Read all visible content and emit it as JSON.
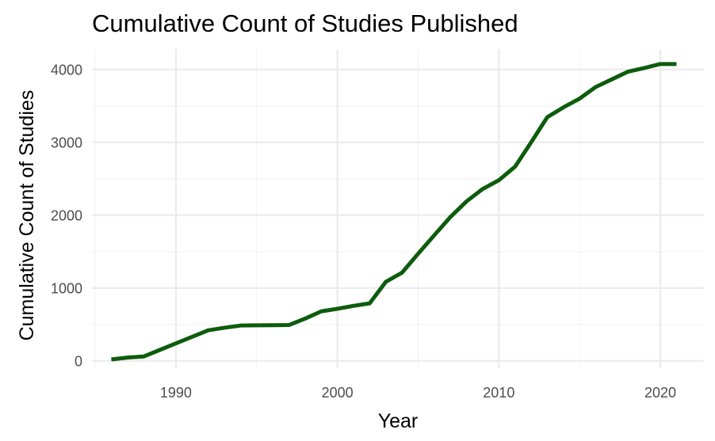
{
  "chart_data": {
    "type": "line",
    "title": "Cumulative Count of Studies Published",
    "xlabel": "Year",
    "ylabel": "Cumulative Count of Studies",
    "xlim": [
      1984.8,
      2022.7
    ],
    "ylim": [
      -100,
      4280
    ],
    "x_ticks": [
      1990,
      2000,
      2010,
      2020
    ],
    "x_tick_labels": [
      "1990",
      "2000",
      "2010",
      "2020"
    ],
    "y_ticks": [
      0,
      1000,
      2000,
      3000,
      4000
    ],
    "y_tick_labels": [
      "0",
      "1000",
      "2000",
      "3000",
      "4000"
    ],
    "grid": true,
    "legend": "none",
    "series": [
      {
        "color": "#0d5c0d",
        "x": [
          1986,
          1987,
          1988,
          1989,
          1990,
          1991,
          1992,
          1993,
          1994,
          1995,
          1996,
          1997,
          1998,
          1999,
          2000,
          2001,
          2002,
          2003,
          2004,
          2005,
          2006,
          2007,
          2008,
          2009,
          2010,
          2011,
          2012,
          2013,
          2014,
          2015,
          2016,
          2017,
          2018,
          2019,
          2020,
          2021
        ],
        "y": [
          20,
          45,
          60,
          150,
          240,
          330,
          420,
          455,
          485,
          488,
          490,
          492,
          580,
          680,
          715,
          755,
          790,
          1085,
          1210,
          1470,
          1725,
          1975,
          2190,
          2360,
          2480,
          2665,
          3000,
          3345,
          3480,
          3600,
          3760,
          3865,
          3970,
          4020,
          4075,
          4075
        ]
      }
    ]
  }
}
